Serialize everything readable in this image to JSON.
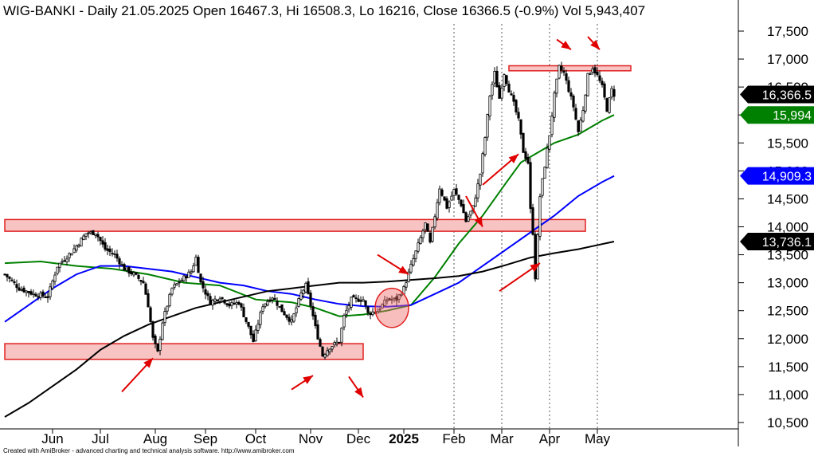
{
  "chart_data": {
    "type": "candlestick",
    "title": "WIG-BANKI - Daily 21.05.2025 Open 16467.3, Hi 16508.3, Lo 16216, Close 16366.5 (-0.9%) Vol 5,943,407",
    "credit": "Created with AmiBroker - advanced charting and technical analysis software. http://www.amibroker.com",
    "ylim": [
      10250,
      17800
    ],
    "yticks": [
      10500,
      11000,
      11500,
      12000,
      12500,
      13000,
      13500,
      14000,
      14500,
      15000,
      15500,
      16000,
      16500,
      17000,
      17500
    ],
    "ytick_labels": [
      "10,500",
      "11,000",
      "11,500",
      "12,000",
      "12,500",
      "13,000",
      "13,500",
      "14,000",
      "14,500",
      "15,000",
      "15,500",
      "16,000",
      "16,500",
      "17,000",
      "17,500"
    ],
    "months": [
      {
        "label": "Jun",
        "day": 20,
        "bold": false
      },
      {
        "label": "Jul",
        "day": 40,
        "bold": false
      },
      {
        "label": "Aug",
        "day": 63,
        "bold": false
      },
      {
        "label": "Sep",
        "day": 84,
        "bold": false
      },
      {
        "label": "Oct",
        "day": 105,
        "bold": false
      },
      {
        "label": "Nov",
        "day": 128,
        "bold": false
      },
      {
        "label": "Dec",
        "day": 148,
        "bold": false
      },
      {
        "label": "2025",
        "day": 167,
        "bold": true
      },
      {
        "label": "Feb",
        "day": 188,
        "bold": false
      },
      {
        "label": "Mar",
        "day": 208,
        "bold": false
      },
      {
        "label": "Apr",
        "day": 228,
        "bold": false
      },
      {
        "label": "May",
        "day": 248,
        "bold": false
      }
    ],
    "gridlines_days": [
      188,
      208,
      228,
      248
    ],
    "key_closes": [
      [
        0,
        13150
      ],
      [
        6,
        12900
      ],
      [
        12,
        12800
      ],
      [
        18,
        12750
      ],
      [
        22,
        13300
      ],
      [
        28,
        13550
      ],
      [
        34,
        13880
      ],
      [
        38,
        13900
      ],
      [
        42,
        13600
      ],
      [
        46,
        13500
      ],
      [
        50,
        13250
      ],
      [
        54,
        13150
      ],
      [
        58,
        13000
      ],
      [
        60,
        12600
      ],
      [
        62,
        12000
      ],
      [
        64,
        11750
      ],
      [
        66,
        12300
      ],
      [
        70,
        12900
      ],
      [
        74,
        13050
      ],
      [
        78,
        13200
      ],
      [
        80,
        13450
      ],
      [
        82,
        13000
      ],
      [
        86,
        12650
      ],
      [
        90,
        12750
      ],
      [
        94,
        12600
      ],
      [
        98,
        12650
      ],
      [
        102,
        12200
      ],
      [
        104,
        11950
      ],
      [
        108,
        12600
      ],
      [
        112,
        12750
      ],
      [
        116,
        12500
      ],
      [
        120,
        12300
      ],
      [
        124,
        12800
      ],
      [
        126,
        12950
      ],
      [
        128,
        12600
      ],
      [
        130,
        12200
      ],
      [
        133,
        11700
      ],
      [
        136,
        11850
      ],
      [
        140,
        11950
      ],
      [
        142,
        12400
      ],
      [
        145,
        12700
      ],
      [
        150,
        12700
      ],
      [
        152,
        12450
      ],
      [
        156,
        12500
      ],
      [
        160,
        12700
      ],
      [
        164,
        12700
      ],
      [
        167,
        12900
      ],
      [
        170,
        13300
      ],
      [
        174,
        13800
      ],
      [
        176,
        14050
      ],
      [
        178,
        13700
      ],
      [
        182,
        14700
      ],
      [
        185,
        14350
      ],
      [
        188,
        14650
      ],
      [
        191,
        14400
      ],
      [
        193,
        14100
      ],
      [
        196,
        14350
      ],
      [
        199,
        14950
      ],
      [
        201,
        15600
      ],
      [
        203,
        16350
      ],
      [
        205,
        16750
      ],
      [
        207,
        16300
      ],
      [
        209,
        16750
      ],
      [
        211,
        16450
      ],
      [
        213,
        16200
      ],
      [
        215,
        15900
      ],
      [
        217,
        15350
      ],
      [
        219,
        15150
      ],
      [
        220,
        14300
      ],
      [
        221,
        13900
      ],
      [
        222,
        13100
      ],
      [
        224,
        14550
      ],
      [
        226,
        15100
      ],
      [
        228,
        15650
      ],
      [
        230,
        16350
      ],
      [
        232,
        16850
      ],
      [
        234,
        16750
      ],
      [
        236,
        16450
      ],
      [
        238,
        16150
      ],
      [
        240,
        15700
      ],
      [
        242,
        16100
      ],
      [
        244,
        16700
      ],
      [
        246,
        16850
      ],
      [
        248,
        16700
      ],
      [
        250,
        16500
      ],
      [
        252,
        16100
      ],
      [
        254,
        16450
      ],
      [
        255,
        16366
      ]
    ],
    "moving_averages": [
      {
        "color": "#008000",
        "last_label": "15,994",
        "points": [
          [
            0,
            13350
          ],
          [
            15,
            13380
          ],
          [
            30,
            13300
          ],
          [
            45,
            13250
          ],
          [
            60,
            13150
          ],
          [
            75,
            13000
          ],
          [
            90,
            12950
          ],
          [
            105,
            12700
          ],
          [
            120,
            12650
          ],
          [
            130,
            12550
          ],
          [
            140,
            12400
          ],
          [
            150,
            12430
          ],
          [
            160,
            12500
          ],
          [
            170,
            12600
          ],
          [
            180,
            13100
          ],
          [
            190,
            13700
          ],
          [
            200,
            14200
          ],
          [
            210,
            14800
          ],
          [
            216,
            15150
          ],
          [
            222,
            15300
          ],
          [
            230,
            15500
          ],
          [
            240,
            15650
          ],
          [
            250,
            15900
          ],
          [
            255,
            16000
          ]
        ]
      },
      {
        "color": "#0000ff",
        "last_label": "14,909.3",
        "points": [
          [
            0,
            12300
          ],
          [
            10,
            12600
          ],
          [
            20,
            12900
          ],
          [
            30,
            13150
          ],
          [
            40,
            13300
          ],
          [
            50,
            13300
          ],
          [
            60,
            13250
          ],
          [
            70,
            13200
          ],
          [
            80,
            13100
          ],
          [
            90,
            13000
          ],
          [
            100,
            12950
          ],
          [
            110,
            12850
          ],
          [
            120,
            12800
          ],
          [
            130,
            12700
          ],
          [
            140,
            12620
          ],
          [
            150,
            12580
          ],
          [
            160,
            12570
          ],
          [
            170,
            12600
          ],
          [
            180,
            12800
          ],
          [
            190,
            13000
          ],
          [
            200,
            13300
          ],
          [
            210,
            13600
          ],
          [
            220,
            13900
          ],
          [
            230,
            14200
          ],
          [
            240,
            14550
          ],
          [
            250,
            14800
          ],
          [
            255,
            14910
          ]
        ]
      },
      {
        "color": "#000000",
        "last_label": "13,736.1",
        "points": [
          [
            0,
            10600
          ],
          [
            10,
            10850
          ],
          [
            20,
            11150
          ],
          [
            30,
            11450
          ],
          [
            40,
            11800
          ],
          [
            50,
            12050
          ],
          [
            60,
            12250
          ],
          [
            70,
            12400
          ],
          [
            80,
            12550
          ],
          [
            90,
            12650
          ],
          [
            100,
            12750
          ],
          [
            110,
            12850
          ],
          [
            120,
            12900
          ],
          [
            130,
            12950
          ],
          [
            140,
            13000
          ],
          [
            150,
            13000
          ],
          [
            160,
            13020
          ],
          [
            170,
            13050
          ],
          [
            180,
            13080
          ],
          [
            190,
            13120
          ],
          [
            200,
            13200
          ],
          [
            210,
            13320
          ],
          [
            220,
            13450
          ],
          [
            230,
            13530
          ],
          [
            240,
            13600
          ],
          [
            250,
            13690
          ],
          [
            255,
            13736
          ]
        ]
      }
    ],
    "last_close_label": "16,366.5",
    "zones": [
      {
        "day0": 0,
        "day1": 150,
        "low": 11630,
        "high": 11910
      },
      {
        "day0": 0,
        "day1": 243,
        "low": 13920,
        "high": 14130
      },
      {
        "day0": 211,
        "day1": 262,
        "low": 16790,
        "high": 16880
      }
    ],
    "circle": {
      "day": 162,
      "price": 12550,
      "rx_days": 7,
      "ry_price": 350
    },
    "arrows": [
      {
        "from": [
          49,
          11050
        ],
        "to": [
          62,
          11650
        ]
      },
      {
        "from": [
          120,
          11090
        ],
        "to": [
          129,
          11340
        ]
      },
      {
        "from": [
          144,
          11320
        ],
        "to": [
          150,
          10950
        ]
      },
      {
        "from": [
          156,
          13500
        ],
        "to": [
          169,
          13150
        ]
      },
      {
        "from": [
          200,
          14750
        ],
        "to": [
          215,
          15300
        ]
      },
      {
        "from": [
          193,
          14550
        ],
        "to": [
          200,
          14000
        ]
      },
      {
        "from": [
          207,
          12850
        ],
        "to": [
          224,
          13350
        ]
      },
      {
        "from": [
          231,
          17350
        ],
        "to": [
          237,
          17170
        ]
      },
      {
        "from": [
          244,
          17400
        ],
        "to": [
          249,
          17170
        ]
      }
    ]
  }
}
